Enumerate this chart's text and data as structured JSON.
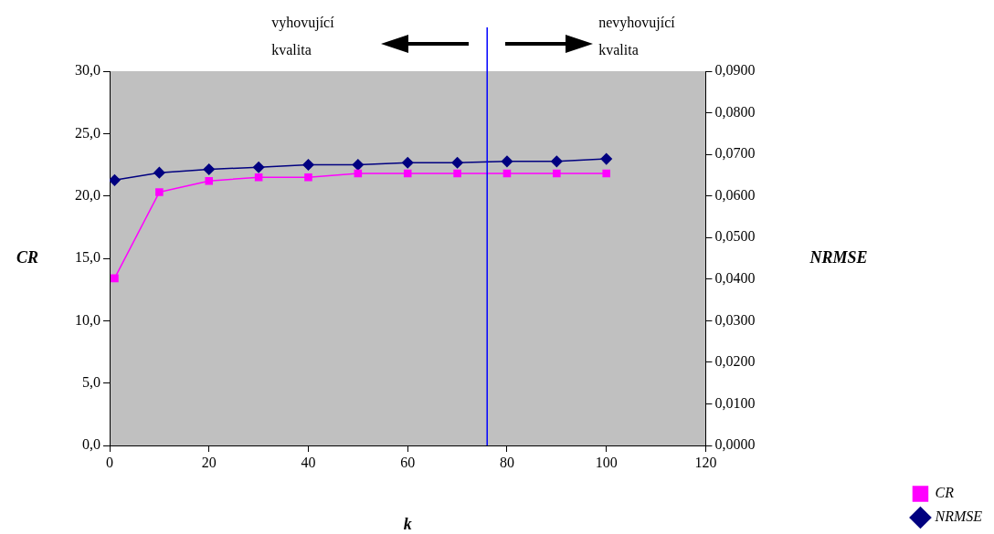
{
  "chart_data": {
    "type": "line",
    "xlabel": "k",
    "ylabel": "CR",
    "y2label": "NRMSE",
    "x": [
      1,
      10,
      20,
      30,
      40,
      50,
      60,
      70,
      80,
      90,
      100
    ],
    "series": [
      {
        "name": "CR",
        "color": "#ff00ff",
        "marker": "square",
        "values": [
          13.4,
          20.3,
          21.2,
          21.5,
          21.5,
          21.8,
          21.8,
          21.8,
          21.8,
          21.8,
          21.8
        ]
      },
      {
        "name": "NRMSE",
        "color": "#000080",
        "marker": "diamond",
        "axis": "y2",
        "values": [
          0.0638,
          0.0656,
          0.0664,
          0.0669,
          0.0675,
          0.0675,
          0.068,
          0.068,
          0.0683,
          0.0683,
          0.0689
        ]
      }
    ],
    "xlim": [
      0,
      120
    ],
    "xticks": [
      0,
      20,
      40,
      60,
      80,
      100,
      120
    ],
    "ylim": [
      0,
      30
    ],
    "yticks": [
      {
        "value": 0,
        "label": "0,0"
      },
      {
        "value": 5,
        "label": "5,0"
      },
      {
        "value": 10,
        "label": "10,0"
      },
      {
        "value": 15,
        "label": "15,0"
      },
      {
        "value": 20,
        "label": "20,0"
      },
      {
        "value": 25,
        "label": "25,0"
      },
      {
        "value": 30,
        "label": "30,0"
      }
    ],
    "y2lim": [
      0,
      0.09
    ],
    "y2ticks": [
      {
        "value": 0,
        "label": "0,0000"
      },
      {
        "value": 0.01,
        "label": "0,0100"
      },
      {
        "value": 0.02,
        "label": "0,0200"
      },
      {
        "value": 0.03,
        "label": "0,0300"
      },
      {
        "value": 0.04,
        "label": "0,0400"
      },
      {
        "value": 0.05,
        "label": "0,0500"
      },
      {
        "value": 0.06,
        "label": "0,0600"
      },
      {
        "value": 0.07,
        "label": "0,0700"
      },
      {
        "value": 0.08,
        "label": "0,0800"
      },
      {
        "value": 0.09,
        "label": "0,0900"
      }
    ],
    "ref_lines": [
      {
        "axis": "x",
        "value": 76,
        "color": "#0000ff"
      }
    ],
    "annotations": [
      "vyhovující kvalita",
      "nevyhovující kvalita"
    ],
    "legend": "bottom right",
    "line_style": "solid"
  }
}
